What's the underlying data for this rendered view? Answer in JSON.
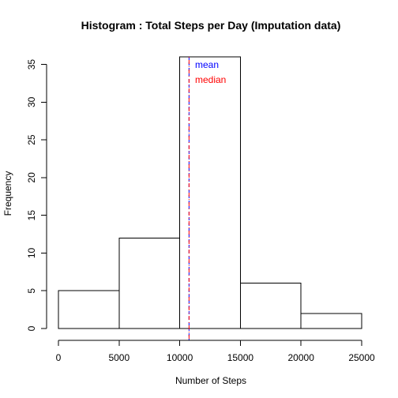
{
  "chart_data": {
    "type": "bar",
    "title": "Histogram : Total Steps per Day (Imputation data)",
    "xlabel": "Number of Steps",
    "ylabel": "Frequency",
    "bins": [
      {
        "from": 0,
        "to": 5000,
        "value": 5
      },
      {
        "from": 5000,
        "to": 10000,
        "value": 12
      },
      {
        "from": 10000,
        "to": 15000,
        "value": 36
      },
      {
        "from": 15000,
        "to": 20000,
        "value": 6
      },
      {
        "from": 20000,
        "to": 25000,
        "value": 2
      }
    ],
    "xlim": [
      0,
      25000
    ],
    "ylim": [
      0,
      36
    ],
    "x_ticks": [
      0,
      5000,
      10000,
      15000,
      20000,
      25000
    ],
    "y_ticks": [
      0,
      5,
      10,
      15,
      20,
      25,
      30,
      35
    ],
    "grid": false,
    "bar_fill": "#ffffff",
    "bar_stroke": "#000000",
    "reference_lines": [
      {
        "name": "mean",
        "value": 10766.19,
        "color": "#0000ff",
        "style": "dashed"
      },
      {
        "name": "median",
        "value": 10766.19,
        "color": "#ff0000",
        "style": "dashed"
      }
    ],
    "legend": {
      "placement": "top-center",
      "entries": [
        {
          "label": "mean",
          "color": "#0000ff"
        },
        {
          "label": "median",
          "color": "#ff0000"
        }
      ]
    }
  }
}
